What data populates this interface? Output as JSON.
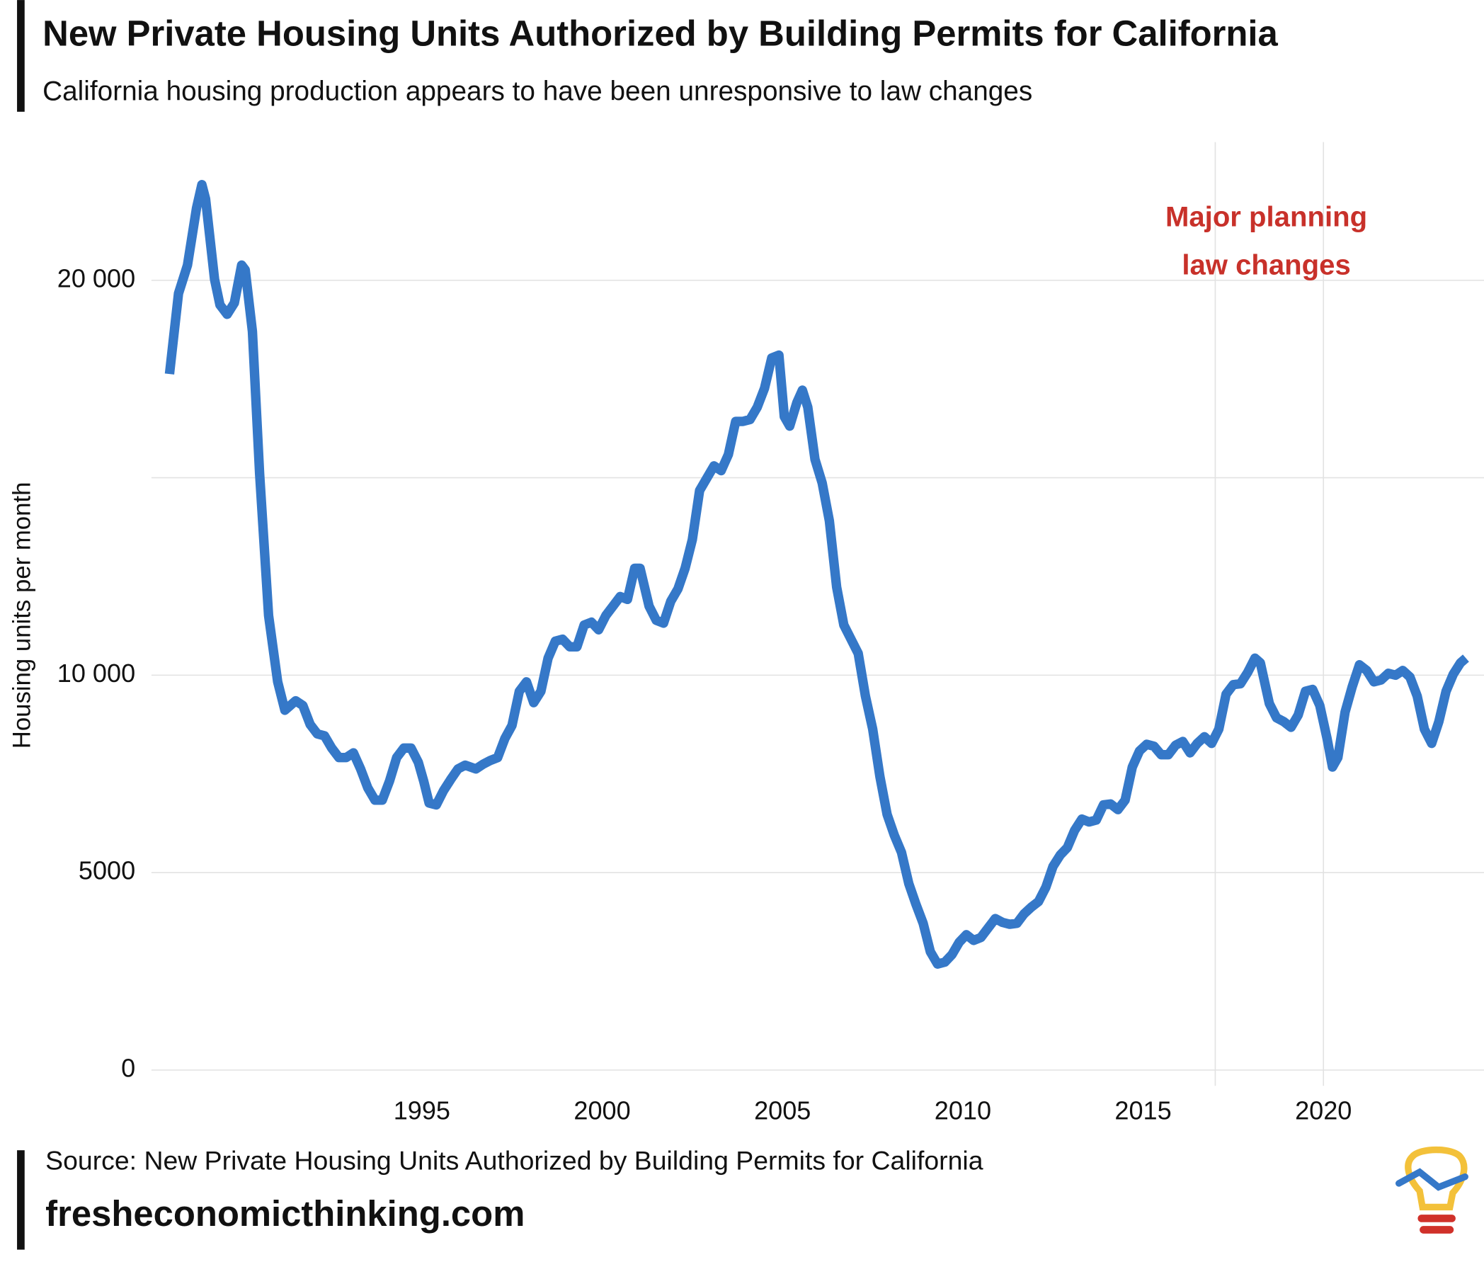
{
  "chart_data": {
    "type": "line",
    "title": "New Private Housing Units Authorized by Building Permits for California",
    "subtitle": "California housing production appears to have been unresponsive to law changes",
    "ylabel": "Housing units per month",
    "source": "Source: New Private Housing Units Authorized by Building Permits for California",
    "site": "fresheconomicthinking.com",
    "annotation": [
      "Major planning",
      "law changes"
    ],
    "annotation_color": "#c8312a",
    "vlines": [
      2017,
      2020
    ],
    "xlim": [
      1987.5,
      2024.4
    ],
    "xticks": [
      1995,
      2000,
      2005,
      2010,
      2015,
      2020
    ],
    "ylim": [
      -400,
      23500
    ],
    "yticks": [
      0,
      5000,
      {
        "value": 10000,
        "label": "10 000"
      },
      {
        "value": 15000,
        "label": null
      },
      {
        "value": 20000,
        "label": "20 000"
      }
    ],
    "grid": true,
    "x": [
      1988.0,
      1988.25,
      1988.5,
      1988.75,
      1988.9,
      1989.0,
      1989.25,
      1989.4,
      1989.6,
      1989.8,
      1990.0,
      1990.1,
      1990.3,
      1990.5,
      1990.75,
      1991.0,
      1991.2,
      1991.35,
      1991.5,
      1991.7,
      1991.9,
      1992.1,
      1992.3,
      1992.5,
      1992.7,
      1992.9,
      1993.1,
      1993.3,
      1993.5,
      1993.7,
      1993.9,
      1994.1,
      1994.3,
      1994.5,
      1994.7,
      1994.9,
      1995.05,
      1995.2,
      1995.4,
      1995.6,
      1995.8,
      1996.0,
      1996.2,
      1996.5,
      1996.7,
      1996.9,
      1997.1,
      1997.3,
      1997.5,
      1997.7,
      1997.9,
      1998.1,
      1998.3,
      1998.5,
      1998.7,
      1998.9,
      1999.1,
      1999.3,
      1999.5,
      1999.7,
      1999.9,
      2000.1,
      2000.3,
      2000.5,
      2000.7,
      2000.9,
      2001.05,
      2001.3,
      2001.5,
      2001.7,
      2001.9,
      2002.1,
      2002.3,
      2002.5,
      2002.7,
      2002.9,
      2003.1,
      2003.3,
      2003.5,
      2003.7,
      2003.9,
      2004.1,
      2004.3,
      2004.5,
      2004.7,
      2004.9,
      2005.05,
      2005.2,
      2005.4,
      2005.55,
      2005.7,
      2005.9,
      2006.1,
      2006.3,
      2006.5,
      2006.7,
      2006.9,
      2007.1,
      2007.3,
      2007.5,
      2007.7,
      2007.9,
      2008.1,
      2008.3,
      2008.5,
      2008.7,
      2008.9,
      2009.1,
      2009.3,
      2009.5,
      2009.7,
      2009.9,
      2010.1,
      2010.3,
      2010.5,
      2010.7,
      2010.9,
      2011.1,
      2011.3,
      2011.5,
      2011.7,
      2011.9,
      2012.1,
      2012.3,
      2012.5,
      2012.7,
      2012.9,
      2013.1,
      2013.3,
      2013.5,
      2013.7,
      2013.9,
      2014.1,
      2014.3,
      2014.5,
      2014.7,
      2014.9,
      2015.1,
      2015.3,
      2015.5,
      2015.7,
      2015.9,
      2016.1,
      2016.3,
      2016.5,
      2016.7,
      2016.9,
      2017.1,
      2017.3,
      2017.5,
      2017.7,
      2017.9,
      2018.1,
      2018.25,
      2018.5,
      2018.7,
      2018.9,
      2019.1,
      2019.3,
      2019.5,
      2019.7,
      2019.9,
      2020.1,
      2020.25,
      2020.4,
      2020.6,
      2020.8,
      2021.0,
      2021.2,
      2021.4,
      2021.6,
      2021.8,
      2022.0,
      2022.2,
      2022.4,
      2022.6,
      2022.8,
      2023.0,
      2023.2,
      2023.4,
      2023.6,
      2023.8,
      2023.95
    ],
    "series": [
      {
        "name": "Housing units",
        "color": "#3578c8",
        "values": [
          17626,
          19664,
          20383,
          21822,
          22422,
          22062,
          20023,
          19376,
          19136,
          19424,
          20383,
          20263,
          18705,
          15108,
          11510,
          9832,
          9113,
          9232,
          9352,
          9232,
          8753,
          8513,
          8465,
          8153,
          7913,
          7913,
          8033,
          7626,
          7146,
          6834,
          6834,
          7314,
          7913,
          8153,
          8153,
          7793,
          7314,
          6762,
          6714,
          7074,
          7362,
          7626,
          7722,
          7626,
          7745,
          7841,
          7913,
          8393,
          8729,
          9592,
          9832,
          9304,
          9592,
          10431,
          10863,
          10911,
          10719,
          10719,
          11270,
          11342,
          11150,
          11510,
          11750,
          11990,
          11918,
          12709,
          12709,
          11750,
          11390,
          11318,
          11870,
          12182,
          12709,
          13429,
          14676,
          14987,
          15299,
          15179,
          15587,
          16426,
          16426,
          16474,
          16786,
          17266,
          18033,
          18105,
          16546,
          16306,
          16906,
          17218,
          16786,
          15467,
          14868,
          13909,
          12230,
          11270,
          10911,
          10551,
          9472,
          8633,
          7434,
          6475,
          5947,
          5515,
          4724,
          4197,
          3717,
          2998,
          2686,
          2734,
          2926,
          3237,
          3429,
          3285,
          3357,
          3597,
          3837,
          3741,
          3693,
          3717,
          3957,
          4125,
          4268,
          4628,
          5156,
          5444,
          5635,
          6067,
          6355,
          6283,
          6331,
          6714,
          6738,
          6595,
          6834,
          7674,
          8081,
          8249,
          8201,
          7985,
          7985,
          8225,
          8321,
          8033,
          8273,
          8441,
          8273,
          8633,
          9520,
          9760,
          9784,
          10072,
          10431,
          10311,
          9280,
          8921,
          8825,
          8681,
          8993,
          9592,
          9640,
          9232,
          8393,
          7674,
          7913,
          9064,
          9712,
          10263,
          10119,
          9832,
          9880,
          10048,
          10000,
          10119,
          9952,
          9472,
          8633,
          8273,
          8825,
          9592,
          10024,
          10311,
          10431
        ]
      }
    ]
  }
}
